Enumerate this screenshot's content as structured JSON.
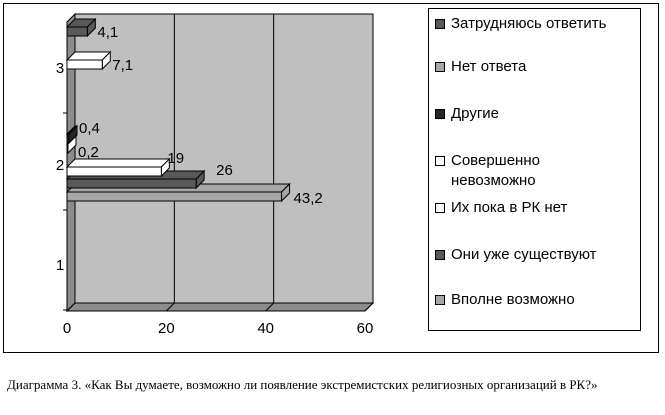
{
  "chart_data": {
    "type": "bar",
    "orientation": "horizontal",
    "style": "3d",
    "categories": [
      "1",
      "2",
      "3"
    ],
    "xlim": [
      0,
      60
    ],
    "x_ticks": [
      "0",
      "20",
      "40",
      "60"
    ],
    "grid": true,
    "legend_position": "right",
    "series": [
      {
        "name": "Вполне возможно",
        "color": "#a6a6a6",
        "values": [
          null,
          43.2,
          null
        ],
        "labels": [
          "",
          "43,2",
          ""
        ]
      },
      {
        "name": "Они уже существуют",
        "color": "#595959",
        "values": [
          null,
          26,
          null
        ],
        "labels": [
          "",
          "26",
          ""
        ]
      },
      {
        "name": "Их пока в РК нет",
        "color": "#ffffff",
        "values": [
          null,
          19,
          null
        ],
        "labels": [
          "",
          "19",
          ""
        ]
      },
      {
        "name": "Совершенно невозможно",
        "color": "#ffffff",
        "values": [
          null,
          0.2,
          7.1
        ],
        "labels": [
          "",
          "0,2",
          "7,1"
        ]
      },
      {
        "name": "Другие",
        "color": "#262626",
        "values": [
          null,
          0.4,
          null
        ],
        "labels": [
          "",
          "0,4",
          ""
        ]
      },
      {
        "name": "Нет ответа",
        "color": "#a6a6a6",
        "values": [
          null,
          null,
          null
        ],
        "labels": [
          "",
          "",
          ""
        ]
      },
      {
        "name": "Затрудняюсь ответить",
        "color": "#595959",
        "values": [
          null,
          null,
          4.1
        ],
        "labels": [
          "",
          "",
          "4,1"
        ]
      }
    ],
    "legend_order": [
      "Затрудняюсь ответить",
      "Нет ответа",
      "Другие",
      "Совершенно невозможно",
      "Их пока в РК нет",
      "Они уже существуют",
      "Вполне возможно"
    ]
  },
  "caption": "Диаграмма 3. «Как Вы думаете, возможно ли появление экстремистских религиозных организаций в РК?»",
  "colors": {
    "wall": "#bfbfbf",
    "floor": "#8c8c8c",
    "grid": "#000000"
  }
}
